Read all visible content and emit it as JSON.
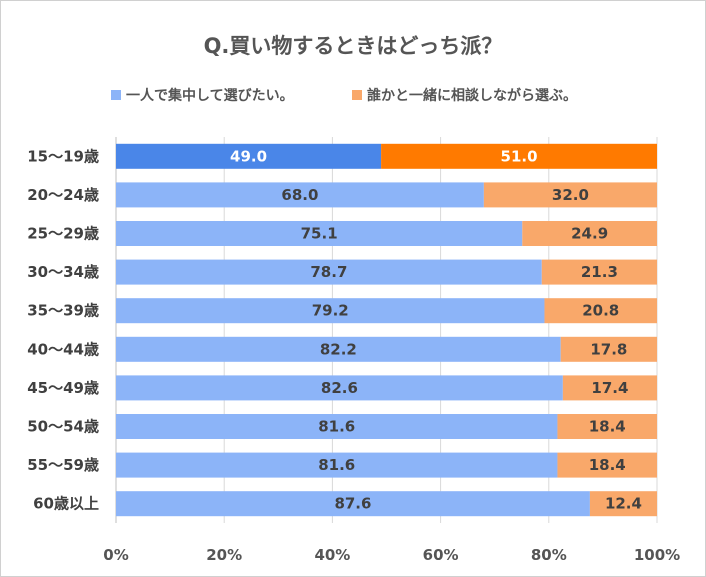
{
  "chart_data": {
    "type": "bar",
    "orientation": "horizontal",
    "stacked": true,
    "percent": true,
    "title": "Q.買い物するときはどっち派？",
    "categories": [
      "15～19歳",
      "20～24歳",
      "25～29歳",
      "30～34歳",
      "35～39歳",
      "40～44歳",
      "45～49歳",
      "50～54歳",
      "55～59歳",
      "60歳以上"
    ],
    "series": [
      {
        "name": "一人で集中して選びたい。",
        "color": "#8CB4F8",
        "highlight_color": "#4A86E8",
        "values": [
          49.0,
          68.0,
          75.1,
          78.7,
          79.2,
          82.2,
          82.6,
          81.6,
          81.6,
          87.6
        ]
      },
      {
        "name": "誰かと一緒に相談しながら選ぶ。",
        "color": "#F9A86A",
        "highlight_color": "#FF7A00",
        "values": [
          51.0,
          32.0,
          24.9,
          21.3,
          20.8,
          17.8,
          17.4,
          18.4,
          18.4,
          12.4
        ]
      }
    ],
    "highlight_index": 0,
    "xlim": [
      0,
      100
    ],
    "xticks": [
      "0%",
      "20%",
      "40%",
      "60%",
      "80%",
      "100%"
    ],
    "xlabel": "",
    "ylabel": "",
    "legend_position": "top"
  }
}
